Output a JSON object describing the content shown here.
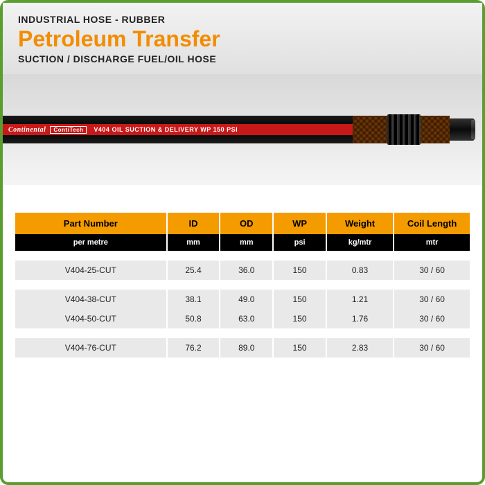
{
  "header": {
    "category": "INDUSTRIAL HOSE - RUBBER",
    "title": "Petroleum Transfer",
    "subtitle": "SUCTION / DISCHARGE FUEL/OIL HOSE"
  },
  "hose": {
    "brand_logo": "Continental",
    "brand_box": "ContiTech",
    "print": "V404 OIL SUCTION & DELIVERY WP 150 PSI"
  },
  "colors": {
    "accent_orange": "#f28c00",
    "header_orange": "#f49b00",
    "border_green": "#5a9e2f",
    "band_red": "#c91818",
    "row_grey": "#e9e9e9"
  },
  "table": {
    "columns": [
      {
        "label": "Part Number",
        "unit": "per metre"
      },
      {
        "label": "ID",
        "unit": "mm"
      },
      {
        "label": "OD",
        "unit": "mm"
      },
      {
        "label": "WP",
        "unit": "psi"
      },
      {
        "label": "Weight",
        "unit": "kg/mtr"
      },
      {
        "label": "Coil Length",
        "unit": "mtr"
      }
    ],
    "groups": [
      [
        {
          "part": "V404-25-CUT",
          "id": "25.4",
          "od": "36.0",
          "wp": "150",
          "weight": "0.83",
          "coil": "30 / 60"
        }
      ],
      [
        {
          "part": "V404-38-CUT",
          "id": "38.1",
          "od": "49.0",
          "wp": "150",
          "weight": "1.21",
          "coil": "30 / 60"
        },
        {
          "part": "V404-50-CUT",
          "id": "50.8",
          "od": "63.0",
          "wp": "150",
          "weight": "1.76",
          "coil": "30 / 60"
        }
      ],
      [
        {
          "part": "V404-76-CUT",
          "id": "76.2",
          "od": "89.0",
          "wp": "150",
          "weight": "2.83",
          "coil": "30 / 60"
        }
      ]
    ]
  }
}
